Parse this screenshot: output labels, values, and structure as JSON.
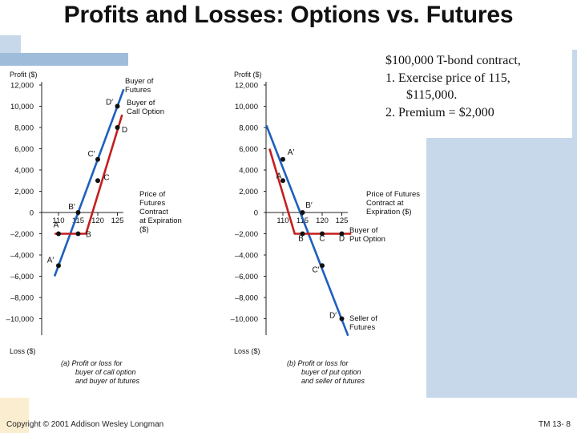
{
  "title": "Profits and Losses: Options vs. Futures",
  "note": {
    "line1": "$100,000 T-bond contract,",
    "line2": "1. Exercise price of 115,",
    "line3": "$115,000.",
    "line4": "2. Premium = $2,000"
  },
  "footer": {
    "copyright": "Copyright © 2001 Addison Wesley Longman",
    "slide_number": "TM 13- 8"
  },
  "colors": {
    "futures": "#1f5fbf",
    "option": "#c41e1e",
    "axis": "#222222"
  },
  "chart_data": [
    {
      "type": "line",
      "ylabel_top": "Profit ($)",
      "ylabel_bottom": "Loss ($)",
      "xlabel": [
        "Price of",
        "Futures",
        "Contract",
        "at Expiration",
        "($)"
      ],
      "caption": [
        "(a)  Profit or loss for",
        "buyer of call option",
        "and buyer of futures"
      ],
      "y_ticks": [
        "12,000",
        "10,000",
        "8,000",
        "6,000",
        "4,000",
        "2,000",
        "0",
        "–2,000",
        "–4,000",
        "–6,000",
        "–8,000",
        "–10,000"
      ],
      "y_tick_values": [
        12000,
        10000,
        8000,
        6000,
        4000,
        2000,
        0,
        -2000,
        -4000,
        -6000,
        -8000,
        -10000
      ],
      "x_ticks": [
        "110",
        "115",
        "120",
        "125"
      ],
      "x_tick_values": [
        110,
        115,
        120,
        125
      ],
      "ylim": [
        -12000,
        12000
      ],
      "series": [
        {
          "name": "Buyer of Futures",
          "x": [
            109,
            126.6
          ],
          "y": [
            -6000,
            11600
          ]
        },
        {
          "name": "Buyer of Call Option",
          "x": [
            109,
            117,
            126.2
          ],
          "y": [
            -2000,
            -2000,
            9200
          ]
        }
      ],
      "points": [
        {
          "label": "A",
          "x": 110,
          "y": -2000
        },
        {
          "label": "B",
          "x": 115,
          "y": -2000
        },
        {
          "label": "A′",
          "x": 110,
          "y": -5000
        },
        {
          "label": "B′",
          "x": 115,
          "y": 0
        },
        {
          "label": "C",
          "x": 120,
          "y": 3000
        },
        {
          "label": "C′",
          "x": 120,
          "y": 5000
        },
        {
          "label": "D",
          "x": 125,
          "y": 8000
        },
        {
          "label": "D′",
          "x": 125,
          "y": 10000
        }
      ]
    },
    {
      "type": "line",
      "ylabel_top": "Profit ($)",
      "ylabel_bottom": "Loss ($)",
      "xlabel": [
        "Price of Futures",
        "Contract at",
        "Expiration ($)"
      ],
      "caption": [
        "(b)  Profit or loss for",
        "buyer of put option",
        "and seller of futures"
      ],
      "y_ticks": [
        "12,000",
        "10,000",
        "8,000",
        "6,000",
        "4,000",
        "2,000",
        "0",
        "–2,000",
        "–4,000",
        "–6,000",
        "–8,000",
        "–10,000"
      ],
      "y_tick_values": [
        12000,
        10000,
        8000,
        6000,
        4000,
        2000,
        0,
        -2000,
        -4000,
        -6000,
        -8000,
        -10000
      ],
      "x_ticks": [
        "110",
        "115",
        "120",
        "125"
      ],
      "x_tick_values": [
        110,
        115,
        120,
        125
      ],
      "ylim": [
        -12000,
        12000
      ],
      "series": [
        {
          "name": "Seller of Futures",
          "x": [
            105.8,
            126.6
          ],
          "y": [
            8200,
            -11600
          ]
        },
        {
          "name": "Buyer of Put Option",
          "x": [
            106.6,
            113,
            127.4
          ],
          "y": [
            6000,
            -2000,
            -2000
          ]
        }
      ],
      "points": [
        {
          "label": "A′",
          "x": 110,
          "y": 5000
        },
        {
          "label": "A",
          "x": 110,
          "y": 3000
        },
        {
          "label": "B′",
          "x": 115,
          "y": 0
        },
        {
          "label": "B",
          "x": 115,
          "y": -2000
        },
        {
          "label": "C",
          "x": 120,
          "y": -2000
        },
        {
          "label": "C′",
          "x": 120,
          "y": -5000
        },
        {
          "label": "D",
          "x": 125,
          "y": -2000
        },
        {
          "label": "D′",
          "x": 125,
          "y": -10000
        }
      ]
    }
  ]
}
